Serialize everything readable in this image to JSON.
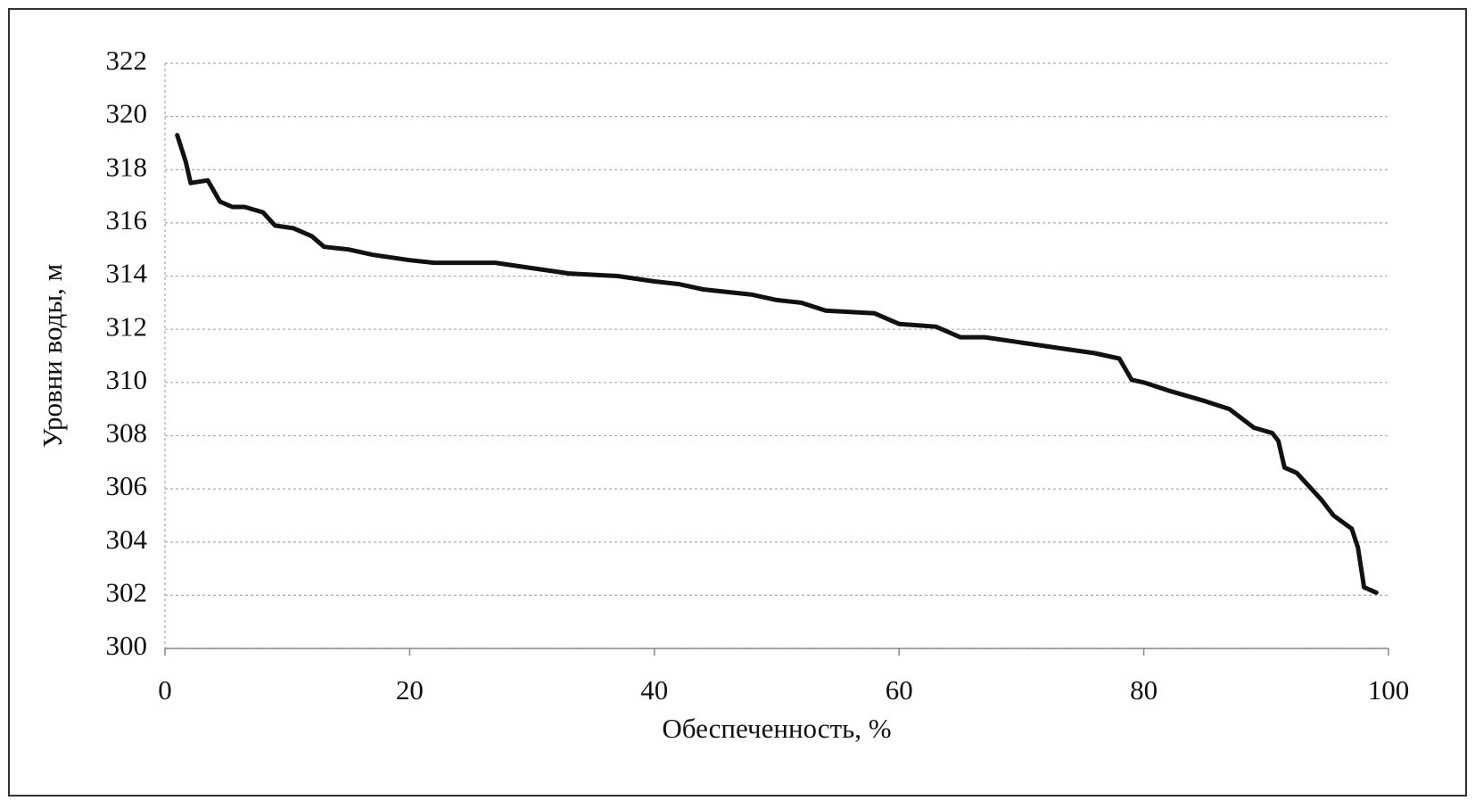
{
  "chart_data": {
    "type": "line",
    "x_label": "Обеспеченность, %",
    "y_label": "Уровни воды, м",
    "x": [
      1,
      1.7,
      2.1,
      3.5,
      4.5,
      5.5,
      6.5,
      8,
      9,
      10.5,
      12,
      13,
      15,
      17,
      20,
      22,
      27,
      30,
      33,
      37,
      40,
      42,
      44,
      48,
      50,
      52,
      54,
      58,
      60,
      63,
      65,
      67,
      70,
      73,
      76,
      78,
      79,
      80,
      82,
      85,
      87,
      89,
      90.5,
      91,
      91.5,
      92.5,
      94.5,
      95.5,
      97,
      97.5,
      98,
      99
    ],
    "series": [
      {
        "color": "#111111",
        "values": [
          319.3,
          318.3,
          317.5,
          317.6,
          316.8,
          316.6,
          316.6,
          316.4,
          315.9,
          315.8,
          315.5,
          315.1,
          315.0,
          314.8,
          314.6,
          314.5,
          314.5,
          314.3,
          314.1,
          314.0,
          313.8,
          313.7,
          313.5,
          313.3,
          313.1,
          313.0,
          312.7,
          312.6,
          312.2,
          312.1,
          311.7,
          311.7,
          311.5,
          311.3,
          311.1,
          310.9,
          310.1,
          310.0,
          309.7,
          309.3,
          309.0,
          308.3,
          308.1,
          307.8,
          306.8,
          306.6,
          305.6,
          305.0,
          304.5,
          303.8,
          302.3,
          302.1
        ]
      }
    ],
    "xlim": [
      0,
      100
    ],
    "xticks": [
      0,
      20,
      40,
      60,
      80,
      100
    ],
    "ylim": [
      300,
      322
    ],
    "yticks": [
      300,
      302,
      304,
      306,
      308,
      310,
      312,
      314,
      316,
      318,
      320,
      322
    ],
    "grid": true
  }
}
